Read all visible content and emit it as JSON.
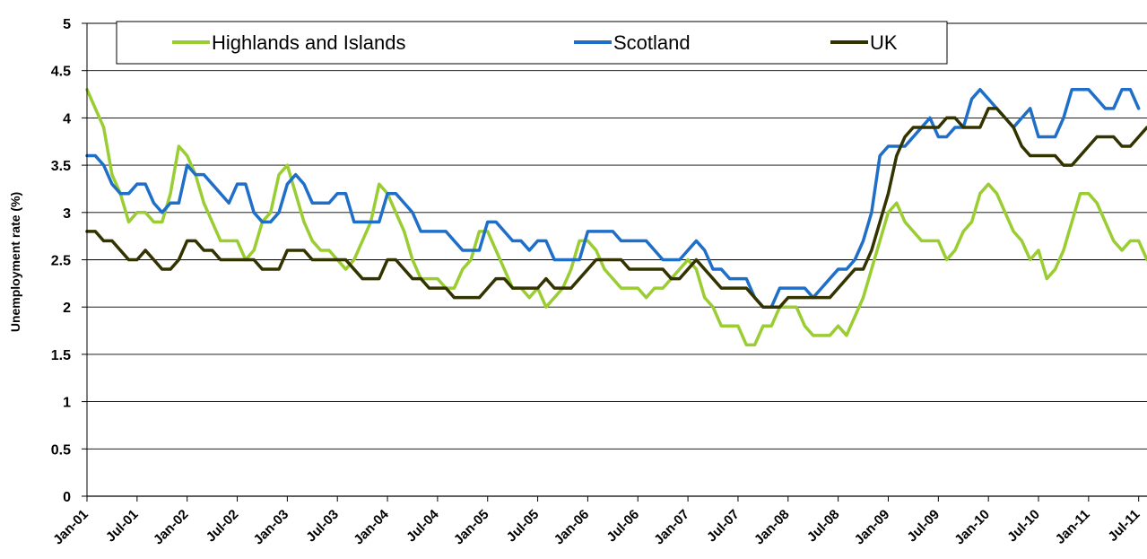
{
  "chart_data": {
    "type": "line",
    "ylabel": "Unemployment rate (%)",
    "xlabel": "",
    "ylim": [
      0,
      5
    ],
    "yticks": [
      "0",
      "0.5",
      "1",
      "1.5",
      "2",
      "2.5",
      "3",
      "3.5",
      "4",
      "4.5",
      "5"
    ],
    "x_start": "Jan-01",
    "x_tick_labels": [
      "Jan-01",
      "Jul-01",
      "Jan-02",
      "Jul-02",
      "Jan-03",
      "Jul-03",
      "Jan-04",
      "Jul-04",
      "Jan-05",
      "Jul-05",
      "Jan-06",
      "Jul-06",
      "Jan-07",
      "Jul-07",
      "Jan-08",
      "Jul-08",
      "Jan-09",
      "Jul-09",
      "Jan-10",
      "Jul-10",
      "Jan-11",
      "Jul-11"
    ],
    "grid": true,
    "legend_position": "top",
    "series": [
      {
        "name": "Highlands and Islands",
        "color": "#9acd32",
        "values": [
          4.3,
          4.1,
          3.9,
          3.4,
          3.2,
          2.9,
          3.0,
          3.0,
          2.9,
          2.9,
          3.2,
          3.7,
          3.6,
          3.4,
          3.1,
          2.9,
          2.7,
          2.7,
          2.7,
          2.5,
          2.6,
          2.9,
          3.0,
          3.4,
          3.5,
          3.2,
          2.9,
          2.7,
          2.6,
          2.6,
          2.5,
          2.4,
          2.5,
          2.7,
          2.9,
          3.3,
          3.2,
          3.0,
          2.8,
          2.5,
          2.3,
          2.3,
          2.3,
          2.2,
          2.2,
          2.4,
          2.5,
          2.8,
          2.8,
          2.6,
          2.4,
          2.2,
          2.2,
          2.1,
          2.2,
          2.0,
          2.1,
          2.2,
          2.4,
          2.7,
          2.7,
          2.6,
          2.4,
          2.3,
          2.2,
          2.2,
          2.2,
          2.1,
          2.2,
          2.2,
          2.3,
          2.4,
          2.5,
          2.4,
          2.1,
          2.0,
          1.8,
          1.8,
          1.8,
          1.6,
          1.6,
          1.8,
          1.8,
          2.0,
          2.0,
          2.0,
          1.8,
          1.7,
          1.7,
          1.7,
          1.8,
          1.7,
          1.9,
          2.1,
          2.4,
          2.7,
          3.0,
          3.1,
          2.9,
          2.8,
          2.7,
          2.7,
          2.7,
          2.5,
          2.6,
          2.8,
          2.9,
          3.2,
          3.3,
          3.2,
          3.0,
          2.8,
          2.7,
          2.5,
          2.6,
          2.3,
          2.4,
          2.6,
          2.9,
          3.2,
          3.2,
          3.1,
          2.9,
          2.7,
          2.6,
          2.7,
          2.7,
          2.5
        ]
      },
      {
        "name": "Scotland",
        "color": "#1f6fc8",
        "values": [
          3.6,
          3.6,
          3.5,
          3.3,
          3.2,
          3.2,
          3.3,
          3.3,
          3.1,
          3.0,
          3.1,
          3.1,
          3.5,
          3.4,
          3.4,
          3.3,
          3.2,
          3.1,
          3.3,
          3.3,
          3.0,
          2.9,
          2.9,
          3.0,
          3.3,
          3.4,
          3.3,
          3.1,
          3.1,
          3.1,
          3.2,
          3.2,
          2.9,
          2.9,
          2.9,
          2.9,
          3.2,
          3.2,
          3.1,
          3.0,
          2.8,
          2.8,
          2.8,
          2.8,
          2.7,
          2.6,
          2.6,
          2.6,
          2.9,
          2.9,
          2.8,
          2.7,
          2.7,
          2.6,
          2.7,
          2.7,
          2.5,
          2.5,
          2.5,
          2.5,
          2.8,
          2.8,
          2.8,
          2.8,
          2.7,
          2.7,
          2.7,
          2.7,
          2.6,
          2.5,
          2.5,
          2.5,
          2.6,
          2.7,
          2.6,
          2.4,
          2.4,
          2.3,
          2.3,
          2.3,
          2.1,
          2.0,
          2.0,
          2.2,
          2.2,
          2.2,
          2.2,
          2.1,
          2.2,
          2.3,
          2.4,
          2.4,
          2.5,
          2.7,
          3.0,
          3.6,
          3.7,
          3.7,
          3.7,
          3.8,
          3.9,
          4.0,
          3.8,
          3.8,
          3.9,
          3.9,
          4.2,
          4.3,
          4.2,
          4.1,
          4.0,
          3.9,
          4.0,
          4.1,
          3.8,
          3.8,
          3.8,
          4.0,
          4.3,
          4.3,
          4.3,
          4.2,
          4.1,
          4.1,
          4.3,
          4.3,
          4.1
        ]
      },
      {
        "name": "UK",
        "color": "#333300",
        "values": [
          2.8,
          2.8,
          2.7,
          2.7,
          2.6,
          2.5,
          2.5,
          2.6,
          2.5,
          2.4,
          2.4,
          2.5,
          2.7,
          2.7,
          2.6,
          2.6,
          2.5,
          2.5,
          2.5,
          2.5,
          2.5,
          2.4,
          2.4,
          2.4,
          2.6,
          2.6,
          2.6,
          2.5,
          2.5,
          2.5,
          2.5,
          2.5,
          2.4,
          2.3,
          2.3,
          2.3,
          2.5,
          2.5,
          2.4,
          2.3,
          2.3,
          2.2,
          2.2,
          2.2,
          2.1,
          2.1,
          2.1,
          2.1,
          2.2,
          2.3,
          2.3,
          2.2,
          2.2,
          2.2,
          2.2,
          2.3,
          2.2,
          2.2,
          2.2,
          2.3,
          2.4,
          2.5,
          2.5,
          2.5,
          2.5,
          2.4,
          2.4,
          2.4,
          2.4,
          2.4,
          2.3,
          2.3,
          2.4,
          2.5,
          2.4,
          2.3,
          2.2,
          2.2,
          2.2,
          2.2,
          2.1,
          2.0,
          2.0,
          2.0,
          2.1,
          2.1,
          2.1,
          2.1,
          2.1,
          2.1,
          2.2,
          2.3,
          2.4,
          2.4,
          2.6,
          2.9,
          3.2,
          3.6,
          3.8,
          3.9,
          3.9,
          3.9,
          3.9,
          4.0,
          4.0,
          3.9,
          3.9,
          3.9,
          4.1,
          4.1,
          4.0,
          3.9,
          3.7,
          3.6,
          3.6,
          3.6,
          3.6,
          3.5,
          3.5,
          3.6,
          3.7,
          3.8,
          3.8,
          3.8,
          3.7,
          3.7,
          3.8,
          3.9,
          3.9
        ]
      }
    ]
  }
}
